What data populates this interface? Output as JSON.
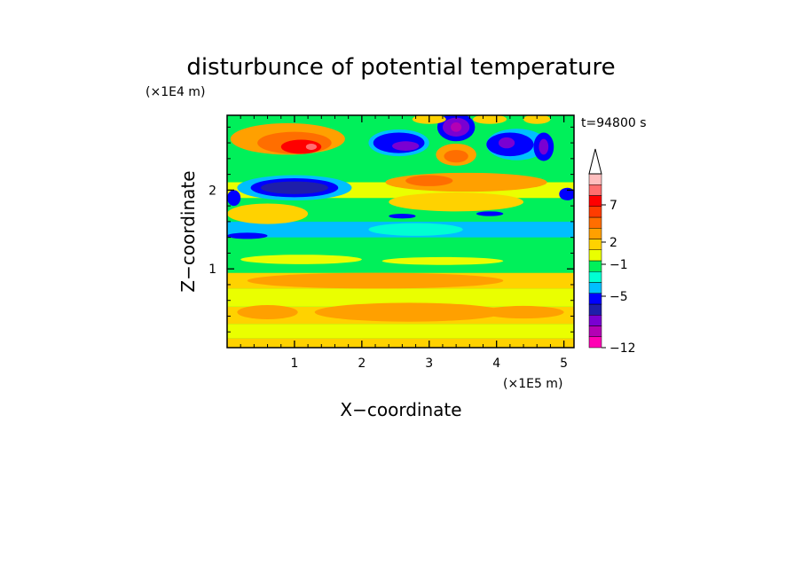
{
  "chart_data": {
    "type": "heatmap",
    "title": "disturbunce of potential temperature",
    "time_label": "t=94800 s",
    "xlabel": "X−coordinate",
    "ylabel": "Z−coordinate",
    "x_unit": "(×1E5 m)",
    "y_unit": "(×1E4 m)",
    "xlim": [
      0,
      5.15
    ],
    "ylim": [
      0,
      2.95
    ],
    "xticks": [
      {
        "value": 1,
        "label": "1"
      },
      {
        "value": 2,
        "label": "2"
      },
      {
        "value": 3,
        "label": "3"
      },
      {
        "value": 4,
        "label": "4"
      },
      {
        "value": 5,
        "label": "5"
      }
    ],
    "yticks": [
      {
        "value": 1,
        "label": "1"
      },
      {
        "value": 2,
        "label": "2"
      }
    ],
    "grid": false,
    "colorbar": {
      "levels_colors": [
        {
          "color": "#ff00b4"
        },
        {
          "color": "#b400b4"
        },
        {
          "color": "#7a00d2"
        },
        {
          "color": "#1e1eaa"
        },
        {
          "color": "#0000ff"
        },
        {
          "color": "#00bfff"
        },
        {
          "color": "#00ffd2"
        },
        {
          "color": "#00f05a"
        },
        {
          "color": "#eaff00"
        },
        {
          "color": "#ffd200"
        },
        {
          "color": "#ffa000"
        },
        {
          "color": "#ff6e00"
        },
        {
          "color": "#ff3c00"
        },
        {
          "color": "#ff0000"
        },
        {
          "color": "#ff6e6e"
        },
        {
          "color": "#ffbebe"
        }
      ],
      "tick_labels": [
        "−12",
        "−5",
        "−1",
        "2",
        "7"
      ]
    },
    "features": [
      {
        "kind": "band",
        "z_min": 0.0,
        "z_max": 0.12,
        "color": "#ffd200"
      },
      {
        "kind": "band",
        "z_min": 0.12,
        "z_max": 0.3,
        "color": "#eaff00"
      },
      {
        "kind": "band",
        "z_min": 0.3,
        "z_max": 0.52,
        "color": "#ffd200"
      },
      {
        "kind": "band",
        "z_min": 0.52,
        "z_max": 0.75,
        "color": "#eaff00"
      },
      {
        "kind": "band",
        "z_min": 0.75,
        "z_max": 0.95,
        "color": "#ffd200"
      },
      {
        "kind": "band",
        "z_min": 0.95,
        "z_max": 1.4,
        "color": "#00f05a"
      },
      {
        "kind": "band",
        "z_min": 1.4,
        "z_max": 1.6,
        "color": "#00bfff"
      },
      {
        "kind": "band",
        "z_min": 1.6,
        "z_max": 1.9,
        "color": "#00f05a"
      },
      {
        "kind": "band",
        "z_min": 1.9,
        "z_max": 2.1,
        "color": "#eaff00"
      },
      {
        "kind": "band",
        "z_min": 2.1,
        "z_max": 2.95,
        "color": "#00f05a"
      },
      {
        "kind": "blob",
        "x": 2.7,
        "z": 0.45,
        "rx": 1.4,
        "rz": 0.12,
        "color": "#ffa000"
      },
      {
        "kind": "blob",
        "x": 0.6,
        "z": 0.45,
        "rx": 0.45,
        "rz": 0.09,
        "color": "#ffa000"
      },
      {
        "kind": "blob",
        "x": 4.4,
        "z": 0.45,
        "rx": 0.6,
        "rz": 0.08,
        "color": "#ffa000"
      },
      {
        "kind": "blob",
        "x": 2.2,
        "z": 0.85,
        "rx": 1.9,
        "rz": 0.1,
        "color": "#ffa000"
      },
      {
        "kind": "blob",
        "x": 1.1,
        "z": 1.12,
        "rx": 0.9,
        "rz": 0.06,
        "color": "#eaff00"
      },
      {
        "kind": "blob",
        "x": 3.2,
        "z": 1.1,
        "rx": 0.9,
        "rz": 0.05,
        "color": "#eaff00"
      },
      {
        "kind": "blob",
        "x": 2.8,
        "z": 1.5,
        "rx": 0.7,
        "rz": 0.08,
        "color": "#00ffd2"
      },
      {
        "kind": "blob",
        "x": 0.3,
        "z": 1.42,
        "rx": 0.3,
        "rz": 0.04,
        "color": "#0000ff"
      },
      {
        "kind": "blob",
        "x": 2.6,
        "z": 1.67,
        "rx": 0.2,
        "rz": 0.03,
        "color": "#0000ff"
      },
      {
        "kind": "blob",
        "x": 3.9,
        "z": 1.7,
        "rx": 0.2,
        "rz": 0.03,
        "color": "#0000ff"
      },
      {
        "kind": "blob",
        "x": 0.6,
        "z": 1.7,
        "rx": 0.6,
        "rz": 0.13,
        "color": "#ffd200"
      },
      {
        "kind": "blob",
        "x": 3.4,
        "z": 1.85,
        "rx": 1.0,
        "rz": 0.12,
        "color": "#ffd200"
      },
      {
        "kind": "blob",
        "x": 1.0,
        "z": 2.03,
        "rx": 0.85,
        "rz": 0.16,
        "color": "#00bfff"
      },
      {
        "kind": "blob",
        "x": 1.0,
        "z": 2.03,
        "rx": 0.65,
        "rz": 0.12,
        "color": "#0000ff"
      },
      {
        "kind": "blob",
        "x": 1.0,
        "z": 2.03,
        "rx": 0.5,
        "rz": 0.08,
        "color": "#1e1eaa"
      },
      {
        "kind": "blob",
        "x": 0.1,
        "z": 1.9,
        "rx": 0.1,
        "rz": 0.1,
        "color": "#0000ff"
      },
      {
        "kind": "blob",
        "x": 5.05,
        "z": 1.95,
        "rx": 0.12,
        "rz": 0.08,
        "color": "#0000ff"
      },
      {
        "kind": "blob",
        "x": 3.55,
        "z": 2.1,
        "rx": 1.2,
        "rz": 0.12,
        "color": "#ffa000"
      },
      {
        "kind": "blob",
        "x": 3.0,
        "z": 2.12,
        "rx": 0.35,
        "rz": 0.07,
        "color": "#ff6e00"
      },
      {
        "kind": "blob",
        "x": 0.9,
        "z": 2.65,
        "rx": 0.85,
        "rz": 0.2,
        "color": "#ffa000"
      },
      {
        "kind": "blob",
        "x": 1.0,
        "z": 2.6,
        "rx": 0.55,
        "rz": 0.14,
        "color": "#ff6e00"
      },
      {
        "kind": "blob",
        "x": 1.1,
        "z": 2.55,
        "rx": 0.3,
        "rz": 0.09,
        "color": "#ff0000"
      },
      {
        "kind": "blob",
        "x": 1.25,
        "z": 2.55,
        "rx": 0.08,
        "rz": 0.04,
        "color": "#ff6e6e"
      },
      {
        "kind": "blob",
        "x": 2.55,
        "z": 2.6,
        "rx": 0.45,
        "rz": 0.17,
        "color": "#00bfff"
      },
      {
        "kind": "blob",
        "x": 2.55,
        "z": 2.6,
        "rx": 0.38,
        "rz": 0.13,
        "color": "#0000ff"
      },
      {
        "kind": "blob",
        "x": 2.65,
        "z": 2.56,
        "rx": 0.2,
        "rz": 0.06,
        "color": "#7a00d2"
      },
      {
        "kind": "blob",
        "x": 3.4,
        "z": 2.45,
        "rx": 0.3,
        "rz": 0.14,
        "color": "#ffa000"
      },
      {
        "kind": "blob",
        "x": 3.4,
        "z": 2.43,
        "rx": 0.18,
        "rz": 0.08,
        "color": "#ff6e00"
      },
      {
        "kind": "blob",
        "x": 3.4,
        "z": 2.8,
        "rx": 0.28,
        "rz": 0.18,
        "color": "#0000ff"
      },
      {
        "kind": "blob",
        "x": 3.4,
        "z": 2.8,
        "rx": 0.2,
        "rz": 0.12,
        "color": "#7a00d2"
      },
      {
        "kind": "blob",
        "x": 3.4,
        "z": 2.8,
        "rx": 0.08,
        "rz": 0.06,
        "color": "#b400b4"
      },
      {
        "kind": "blob",
        "x": 4.3,
        "z": 2.58,
        "rx": 0.45,
        "rz": 0.2,
        "color": "#00bfff"
      },
      {
        "kind": "blob",
        "x": 4.2,
        "z": 2.58,
        "rx": 0.35,
        "rz": 0.15,
        "color": "#0000ff"
      },
      {
        "kind": "blob",
        "x": 4.15,
        "z": 2.6,
        "rx": 0.12,
        "rz": 0.07,
        "color": "#7a00d2"
      },
      {
        "kind": "blob",
        "x": 4.7,
        "z": 2.55,
        "rx": 0.15,
        "rz": 0.18,
        "color": "#0000ff"
      },
      {
        "kind": "blob",
        "x": 4.7,
        "z": 2.55,
        "rx": 0.07,
        "rz": 0.1,
        "color": "#7a00d2"
      },
      {
        "kind": "blob",
        "x": 3.0,
        "z": 2.9,
        "rx": 0.25,
        "rz": 0.06,
        "color": "#ffd200"
      },
      {
        "kind": "blob",
        "x": 3.9,
        "z": 2.9,
        "rx": 0.25,
        "rz": 0.06,
        "color": "#ffd200"
      },
      {
        "kind": "blob",
        "x": 4.6,
        "z": 2.9,
        "rx": 0.2,
        "rz": 0.06,
        "color": "#ffd200"
      }
    ]
  }
}
